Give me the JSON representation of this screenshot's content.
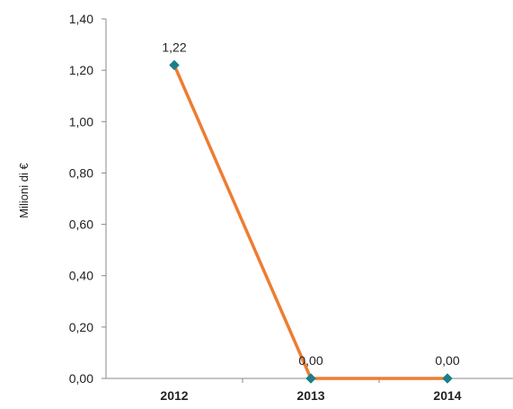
{
  "chart_data": {
    "type": "line",
    "categories": [
      "2012",
      "2013",
      "2014"
    ],
    "series": [
      {
        "values": [
          1.22,
          0.0,
          0.0
        ],
        "data_labels": [
          "1,22",
          "0,00",
          "0,00"
        ],
        "line_color": "#ed7d31",
        "marker_color": "#1a7f8a"
      }
    ],
    "title": "",
    "xlabel": "",
    "ylabel": "Milioni di €",
    "ylim": [
      0,
      1.4
    ],
    "y_ticks": [
      0,
      0.2,
      0.4,
      0.6,
      0.8,
      1.0,
      1.2,
      1.4
    ],
    "y_tick_labels": [
      "0,00",
      "0,20",
      "0,40",
      "0,60",
      "0,80",
      "1,00",
      "1,20",
      "1,40"
    ],
    "grid": false,
    "legend": "none"
  }
}
